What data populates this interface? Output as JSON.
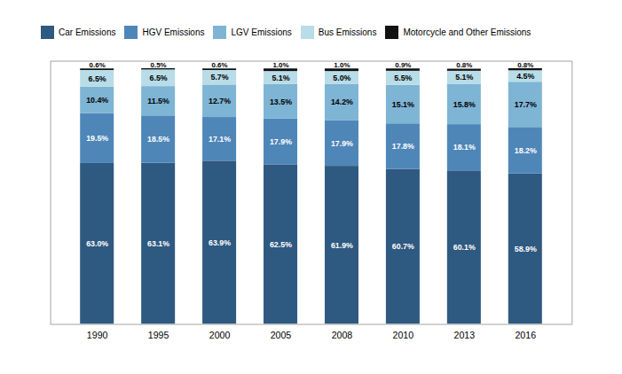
{
  "chart_data": {
    "type": "bar",
    "stacked": true,
    "categories": [
      "1990",
      "1995",
      "2000",
      "2005",
      "2008",
      "2010",
      "2013",
      "2016"
    ],
    "series": [
      {
        "name": "Car Emissions",
        "color": "#2E5980",
        "values": [
          63.0,
          63.1,
          63.9,
          62.5,
          61.9,
          60.7,
          60.1,
          58.9
        ],
        "value_labels": [
          "63.0%",
          "63.1%",
          "63.9%",
          "62.5%",
          "61.9%",
          "60.7%",
          "60.1%",
          "58.9%"
        ]
      },
      {
        "name": "HGV Emissions",
        "color": "#4F86B8",
        "values": [
          19.5,
          18.5,
          17.1,
          17.9,
          17.9,
          17.8,
          18.1,
          18.2
        ],
        "value_labels": [
          "19.5%",
          "18.5%",
          "17.1%",
          "17.9%",
          "17.9%",
          "17.8%",
          "18.1%",
          "18.2%"
        ]
      },
      {
        "name": "LGV Emissions",
        "color": "#7EB4D4",
        "values": [
          10.4,
          11.5,
          12.7,
          13.5,
          14.2,
          15.1,
          15.8,
          17.7
        ],
        "value_labels": [
          "10.4%",
          "11.5%",
          "12.7%",
          "13.5%",
          "14.2%",
          "15.1%",
          "15.8%",
          "17.7%"
        ]
      },
      {
        "name": "Bus Emissions",
        "color": "#B8DCE8",
        "values": [
          6.5,
          6.5,
          5.7,
          5.1,
          5.0,
          5.5,
          5.1,
          4.5
        ],
        "value_labels": [
          "6.5%",
          "6.5%",
          "5.7%",
          "5.1%",
          "5.0%",
          "5.5%",
          "5.1%",
          "4.5%"
        ]
      },
      {
        "name": "Motorcycle and Other Emissions",
        "color": "#111111",
        "values": [
          0.6,
          0.5,
          0.6,
          1.0,
          1.0,
          0.9,
          0.8,
          0.8
        ],
        "value_labels": [
          "0.6%",
          "0.5%",
          "0.6%",
          "1.0%",
          "1.0%",
          "0.9%",
          "0.8%",
          "0.8%"
        ]
      }
    ],
    "ylim": [
      0,
      103
    ],
    "yticks": [],
    "tick_labels": "x",
    "data_labels": true,
    "grid": false,
    "legend": "top"
  }
}
